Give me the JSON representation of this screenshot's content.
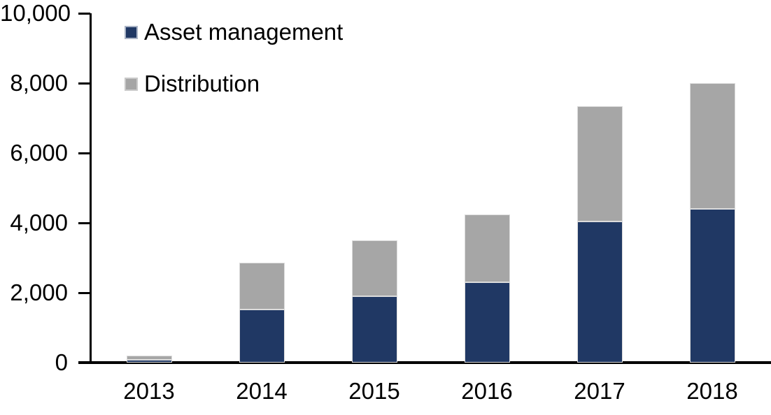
{
  "chart_data": {
    "type": "bar",
    "stacked": true,
    "title": "",
    "xlabel": "",
    "ylabel": "",
    "categories": [
      "2013",
      "2014",
      "2015",
      "2016",
      "2017",
      "2018"
    ],
    "series": [
      {
        "name": "Asset management",
        "color": "#203864",
        "values": [
          90,
          1520,
          1900,
          2300,
          4050,
          4400
        ]
      },
      {
        "name": "Distribution",
        "color": "#a6a6a6",
        "values": [
          110,
          1340,
          1600,
          1950,
          3300,
          3600
        ]
      }
    ],
    "totals": [
      200,
      2860,
      3500,
      4250,
      7350,
      8000
    ],
    "ylim": [
      0,
      10000
    ],
    "ytick_step": 2000,
    "ytick_labels": [
      "0",
      "2,000",
      "4,000",
      "6,000",
      "8,000",
      "10,000"
    ],
    "grid": false,
    "legend_position": "top-left",
    "axis_color": "#000000",
    "bar_border_color": "#dcdcdc"
  }
}
